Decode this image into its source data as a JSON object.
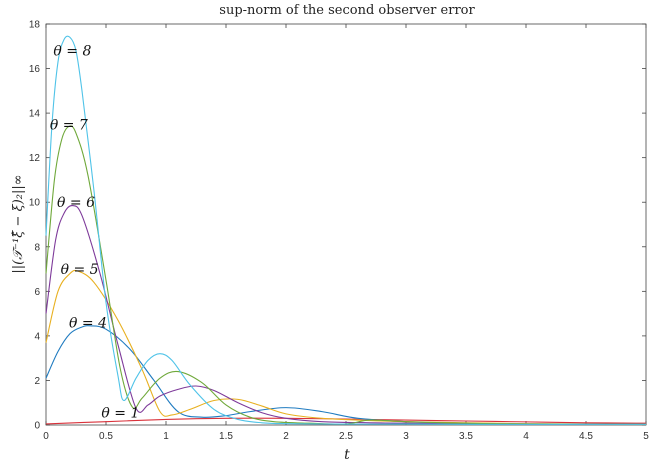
{
  "chart_data": {
    "type": "line",
    "title": "sup-norm of the second observer error",
    "xlabel": "t",
    "ylabel": "||(𝒯⁻¹ξ̂ − ξ)₂||∞",
    "xlim": [
      0,
      5
    ],
    "ylim": [
      0,
      18
    ],
    "xticks": [
      0,
      0.5,
      1,
      1.5,
      2,
      2.5,
      3,
      3.5,
      4,
      4.5,
      5
    ],
    "xtick_labels": [
      "0",
      "0.5",
      "1",
      "1.5",
      "2",
      "2.5",
      "3",
      "3.5",
      "4",
      "4.5",
      "5"
    ],
    "yticks": [
      0,
      2,
      4,
      6,
      8,
      10,
      12,
      14,
      16,
      18
    ],
    "ytick_labels": [
      "0",
      "2",
      "4",
      "6",
      "8",
      "10",
      "12",
      "14",
      "16",
      "18"
    ],
    "grid": false,
    "series": [
      {
        "name": "θ = 1",
        "color": "#d9323b",
        "x": [
          0,
          0.5,
          1,
          1.5,
          2,
          2.5,
          3,
          3.5,
          4,
          4.5,
          5
        ],
        "y": [
          0.05,
          0.15,
          0.25,
          0.3,
          0.3,
          0.27,
          0.22,
          0.18,
          0.14,
          0.1,
          0.08
        ]
      },
      {
        "name": "θ = 4",
        "color": "#1f7bc0",
        "x": [
          0,
          0.1,
          0.2,
          0.3,
          0.37,
          0.5,
          0.7,
          0.9,
          1.1,
          1.3,
          1.5,
          1.7,
          2.0,
          2.3,
          2.6,
          3.0,
          3.5,
          4.0,
          4.5,
          5.0
        ],
        "y": [
          2.1,
          3.3,
          4.1,
          4.4,
          4.45,
          4.3,
          3.4,
          2.0,
          0.6,
          0.35,
          0.42,
          0.6,
          0.78,
          0.6,
          0.3,
          0.15,
          0.08,
          0.05,
          0.04,
          0.03
        ]
      },
      {
        "name": "θ = 5",
        "color": "#e8b020",
        "x": [
          0,
          0.1,
          0.2,
          0.27,
          0.4,
          0.6,
          0.8,
          0.95,
          1.05,
          1.2,
          1.4,
          1.6,
          1.8,
          2.0,
          2.3,
          2.7,
          3.0,
          3.5,
          4.0,
          4.5,
          5.0
        ],
        "y": [
          3.7,
          6.0,
          6.8,
          6.9,
          6.4,
          4.7,
          2.5,
          0.6,
          0.45,
          0.7,
          1.1,
          1.15,
          0.85,
          0.5,
          0.3,
          0.2,
          0.15,
          0.1,
          0.06,
          0.04,
          0.03
        ]
      },
      {
        "name": "θ = 6",
        "color": "#7e3a9a",
        "x": [
          0,
          0.08,
          0.15,
          0.22,
          0.3,
          0.45,
          0.6,
          0.75,
          0.85,
          0.95,
          1.1,
          1.25,
          1.4,
          1.6,
          1.8,
          2.0,
          2.3,
          2.7,
          3.0,
          3.5,
          4.0,
          5.0
        ],
        "y": [
          5.0,
          8.3,
          9.5,
          9.85,
          9.4,
          6.8,
          3.6,
          0.75,
          0.9,
          1.3,
          1.6,
          1.75,
          1.55,
          1.0,
          0.55,
          0.3,
          0.15,
          0.1,
          0.08,
          0.05,
          0.04,
          0.03
        ]
      },
      {
        "name": "θ = 7",
        "color": "#6fa83a",
        "x": [
          0,
          0.07,
          0.13,
          0.19,
          0.25,
          0.35,
          0.5,
          0.62,
          0.72,
          0.8,
          0.95,
          1.1,
          1.3,
          1.5,
          1.7,
          1.9,
          2.2,
          2.5,
          2.7,
          3.0,
          3.5,
          4.0,
          5.0
        ],
        "y": [
          6.8,
          11.0,
          12.8,
          13.4,
          13.1,
          11.2,
          6.5,
          2.5,
          0.8,
          1.2,
          2.1,
          2.4,
          1.9,
          0.9,
          0.35,
          0.15,
          0.08,
          0.05,
          0.22,
          0.15,
          0.08,
          0.05,
          0.03
        ]
      },
      {
        "name": "θ = 8",
        "color": "#4fc3e8",
        "x": [
          0,
          0.05,
          0.1,
          0.15,
          0.2,
          0.25,
          0.3,
          0.4,
          0.5,
          0.6,
          0.65,
          0.75,
          0.85,
          0.95,
          1.05,
          1.2,
          1.4,
          1.6,
          1.8,
          2.0,
          2.5,
          3.0,
          3.5,
          4.0,
          5.0
        ],
        "y": [
          8.5,
          13.5,
          16.3,
          17.3,
          17.4,
          16.8,
          15.0,
          10.5,
          5.5,
          2.2,
          1.1,
          2.1,
          2.9,
          3.2,
          2.9,
          1.8,
          0.7,
          0.25,
          0.1,
          0.06,
          0.04,
          0.04,
          0.03,
          0.03,
          0.03
        ]
      }
    ],
    "annotations": [
      {
        "text": "θ = 8",
        "x": 0.22,
        "y": 16.8
      },
      {
        "text": "θ = 7",
        "x": 0.19,
        "y": 13.5
      },
      {
        "text": "θ = 6",
        "x": 0.25,
        "y": 10.0
      },
      {
        "text": "θ = 5",
        "x": 0.28,
        "y": 7.0
      },
      {
        "text": "θ = 4",
        "x": 0.35,
        "y": 4.6
      },
      {
        "text": "θ = 1",
        "x": 0.62,
        "y": 0.55
      }
    ]
  }
}
